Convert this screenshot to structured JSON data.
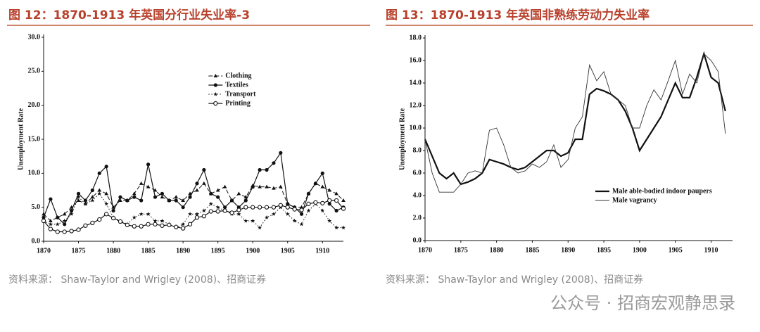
{
  "chart_data": [
    {
      "type": "line",
      "title": "图 12：1870-1913 年英国分行业失业率-3",
      "ylabel": "Unemployment Rate",
      "source": "资料来源： Shaw-Taylor and Wrigley (2008)、招商证券",
      "x": [
        1870,
        1871,
        1872,
        1873,
        1874,
        1875,
        1876,
        1877,
        1878,
        1879,
        1880,
        1881,
        1882,
        1883,
        1884,
        1885,
        1886,
        1887,
        1888,
        1889,
        1890,
        1891,
        1892,
        1893,
        1894,
        1895,
        1896,
        1897,
        1898,
        1899,
        1900,
        1901,
        1902,
        1903,
        1904,
        1905,
        1906,
        1907,
        1908,
        1909,
        1910,
        1911,
        1912,
        1913
      ],
      "xlim": [
        1870,
        1913
      ],
      "xticks": [
        1870,
        1875,
        1880,
        1885,
        1890,
        1895,
        1900,
        1905,
        1910
      ],
      "ylim": [
        0,
        30
      ],
      "yticks": [
        {
          "value": 0,
          "label": "0.0"
        },
        {
          "value": 5,
          "label": "5.0"
        },
        {
          "value": 10,
          "label": "10.0"
        },
        {
          "value": 15,
          "label": "15.0"
        },
        {
          "value": 20,
          "label": "20.0"
        },
        {
          "value": 25,
          "label": "25.0"
        },
        {
          "value": 30,
          "label": "30.0"
        }
      ],
      "legend": "upper center",
      "series": [
        {
          "name": "Clothing",
          "color": "#111111",
          "dash": "dashed",
          "marker": "triangle",
          "linewidth": 1,
          "values": [
            4,
            3,
            3.5,
            4,
            5,
            6,
            5.5,
            6.5,
            7.5,
            7,
            5,
            6,
            6,
            7,
            8.5,
            8,
            7.5,
            6.5,
            6,
            6.5,
            6,
            7,
            7.5,
            8.5,
            7,
            7.5,
            8,
            6,
            7,
            6.5,
            8.2,
            8,
            8,
            7.8,
            8,
            5.5,
            5,
            5,
            7,
            8.5,
            8,
            7.5,
            7,
            6
          ]
        },
        {
          "name": "Textiles",
          "color": "#111111",
          "dash": "solid",
          "marker": "circle",
          "linewidth": 1.2,
          "values": [
            3.5,
            6.2,
            3.5,
            2.5,
            4.5,
            7,
            6,
            7.5,
            10,
            11,
            4.5,
            6.5,
            6,
            6.5,
            6,
            11.3,
            6.5,
            7,
            6,
            6,
            5,
            6.5,
            8.5,
            10.5,
            7,
            6.5,
            5,
            6,
            5,
            6,
            8,
            10.5,
            10.5,
            11.5,
            13,
            5.5,
            5,
            4,
            7,
            8.5,
            10,
            5.5,
            4.5,
            5
          ]
        },
        {
          "name": "Transport",
          "color": "#111111",
          "dash": "dotted",
          "marker": "star",
          "linewidth": 1,
          "values": [
            3,
            2.5,
            2.5,
            3,
            4,
            6.5,
            5.5,
            6,
            7,
            5.5,
            3.5,
            3,
            2.5,
            3.5,
            4,
            4,
            3,
            3,
            2.5,
            2,
            2.5,
            4,
            4,
            4.5,
            5.5,
            5,
            4.5,
            4,
            4,
            3,
            3,
            2,
            3.5,
            4,
            5,
            4,
            3,
            2.5,
            4.5,
            5.5,
            4.5,
            3,
            2,
            2
          ]
        },
        {
          "name": "Printing",
          "color": "#111111",
          "dash": "solid",
          "marker": "open-circle",
          "linewidth": 1.2,
          "values": [
            3,
            1.8,
            1.4,
            1.4,
            1.5,
            1.7,
            2.3,
            2.7,
            3.2,
            4,
            3.4,
            2.9,
            2.4,
            2.2,
            2.2,
            2.5,
            2.5,
            2.3,
            2.4,
            2.1,
            1.9,
            2.5,
            3.5,
            3.7,
            4.4,
            4.4,
            4.5,
            4.2,
            4.6,
            5,
            5,
            5,
            5,
            5,
            5.3,
            5,
            4.7,
            4.6,
            5.5,
            5.7,
            5.6,
            6,
            6,
            4.8
          ]
        }
      ]
    },
    {
      "type": "line",
      "title": "图 13：1870-1913 年英国非熟练劳动力失业率",
      "ylabel": "Unemployment Rate",
      "source": "资料来源： Shaw-Taylor and Wrigley (2008)、招商证券",
      "x": [
        1870,
        1871,
        1872,
        1873,
        1874,
        1875,
        1876,
        1877,
        1878,
        1879,
        1880,
        1881,
        1882,
        1883,
        1884,
        1885,
        1886,
        1887,
        1888,
        1889,
        1890,
        1891,
        1892,
        1893,
        1894,
        1895,
        1896,
        1897,
        1898,
        1899,
        1900,
        1901,
        1902,
        1903,
        1904,
        1905,
        1906,
        1907,
        1908,
        1909,
        1910,
        1911,
        1912
      ],
      "xlim": [
        1870,
        1913
      ],
      "xticks": [
        1870,
        1875,
        1880,
        1885,
        1890,
        1895,
        1900,
        1905,
        1910
      ],
      "ylim": [
        0,
        18
      ],
      "yticks": [
        {
          "value": 0,
          "label": "0.0"
        },
        {
          "value": 2,
          "label": "2.0"
        },
        {
          "value": 4,
          "label": "4.0"
        },
        {
          "value": 6,
          "label": "6.0"
        },
        {
          "value": 8,
          "label": "8.0"
        },
        {
          "value": 10,
          "label": "10.0"
        },
        {
          "value": 12,
          "label": "12.0"
        },
        {
          "value": 14,
          "label": "14.0"
        },
        {
          "value": 16,
          "label": "16.0"
        },
        {
          "value": 18,
          "label": "18.0"
        }
      ],
      "legend": "lower right",
      "series": [
        {
          "name": "Male able-bodied indoor paupers",
          "color": "#111111",
          "dash": "solid",
          "linewidth": 2.2,
          "values": [
            9,
            7.5,
            6,
            5.5,
            6,
            5,
            5.2,
            5.5,
            6,
            7.2,
            7,
            6.8,
            6.5,
            6.3,
            6.5,
            7,
            7.5,
            8,
            8,
            7.5,
            7.8,
            9,
            9,
            13,
            13.5,
            13.3,
            13,
            12.5,
            11.5,
            10,
            8,
            9,
            10,
            11,
            12.5,
            14,
            12.7,
            12.7,
            14.5,
            16.6,
            14.5,
            14,
            11.5
          ]
        },
        {
          "name": "Male vagrancy",
          "color": "#333333",
          "dash": "solid",
          "linewidth": 0.9,
          "values": [
            9,
            6,
            4.3,
            4.3,
            4.3,
            5,
            6,
            6.2,
            6,
            9.8,
            10,
            8.5,
            6.5,
            6,
            6.2,
            6.8,
            6.5,
            7,
            8.5,
            6.5,
            7.2,
            10,
            11,
            15.6,
            14.2,
            15,
            13,
            12.5,
            12,
            10,
            10,
            12,
            13.4,
            12.5,
            14.2,
            16,
            13,
            14.8,
            14,
            16.6,
            16,
            15,
            9.5
          ]
        }
      ]
    }
  ],
  "watermark": "公众号 · 招商宏观静思录"
}
